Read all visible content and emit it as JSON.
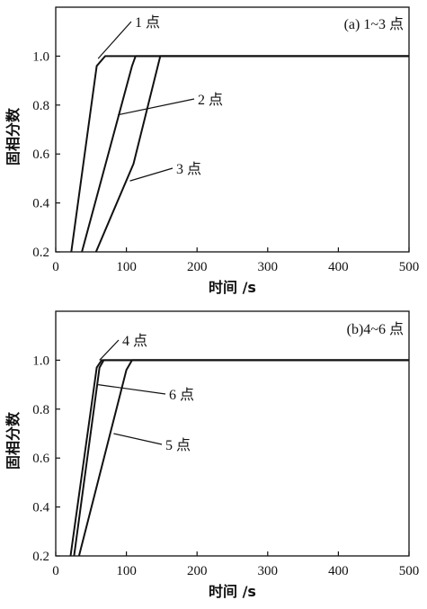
{
  "chart_data": [
    {
      "type": "line",
      "panel_label": "(a) 1~3 点",
      "xlabel": "时间 /s",
      "ylabel": "固相分数",
      "xlim": [
        0,
        500
      ],
      "ylim": [
        0.2,
        1.2
      ],
      "xticks": [
        0,
        100,
        200,
        300,
        400,
        500
      ],
      "yticks": [
        0.2,
        0.4,
        0.6,
        0.8,
        1.0
      ],
      "grid": false,
      "series": [
        {
          "name": "1 点",
          "x": [
            22,
            58,
            70,
            500
          ],
          "y": [
            0.2,
            0.96,
            1.0,
            1.0
          ],
          "label_anchor": [
            60,
            0.99
          ]
        },
        {
          "name": "2 点",
          "x": [
            37,
            108,
            113,
            500
          ],
          "y": [
            0.2,
            0.96,
            1.0,
            1.0
          ],
          "label_anchor": [
            88,
            0.76
          ]
        },
        {
          "name": "3 点",
          "x": [
            57,
            110,
            148,
            500
          ],
          "y": [
            0.2,
            0.56,
            1.0,
            1.0
          ],
          "label_anchor": [
            105,
            0.49
          ]
        }
      ]
    },
    {
      "type": "line",
      "panel_label": "(b)4~6 点",
      "xlabel": "时间 /s",
      "ylabel": "固相分数",
      "xlim": [
        0,
        500
      ],
      "ylim": [
        0.2,
        1.2
      ],
      "xticks": [
        0,
        100,
        200,
        300,
        400,
        500
      ],
      "yticks": [
        0.2,
        0.4,
        0.6,
        0.8,
        1.0
      ],
      "grid": false,
      "series": [
        {
          "name": "4 点",
          "x": [
            21,
            58,
            65,
            500
          ],
          "y": [
            0.2,
            0.97,
            1.0,
            1.0
          ],
          "label_anchor": [
            62,
            1.0
          ]
        },
        {
          "name": "6 点",
          "x": [
            26,
            62,
            68,
            500
          ],
          "y": [
            0.2,
            0.97,
            1.0,
            1.0
          ],
          "label_anchor": [
            60,
            0.9
          ]
        },
        {
          "name": "5 点",
          "x": [
            33,
            100,
            108,
            500
          ],
          "y": [
            0.2,
            0.96,
            1.0,
            1.0
          ],
          "label_anchor": [
            82,
            0.7
          ]
        }
      ]
    }
  ]
}
